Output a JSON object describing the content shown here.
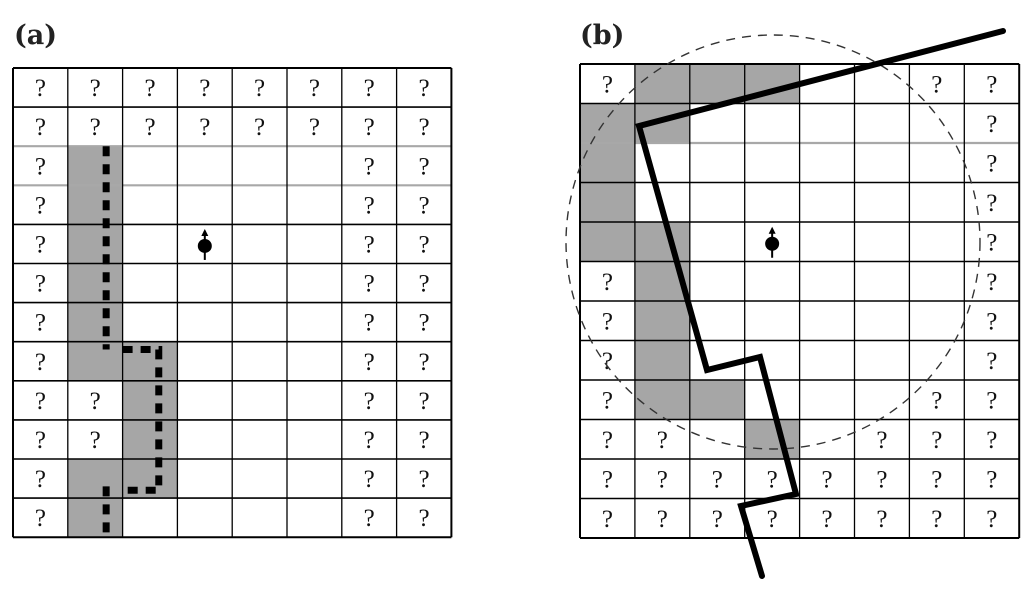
{
  "panels": [
    {
      "id": "a",
      "label": "(a)",
      "rows": 12,
      "cols": 8,
      "unknown_symbol": "?",
      "unknown_cells": [
        [
          0,
          0
        ],
        [
          0,
          1
        ],
        [
          0,
          2
        ],
        [
          0,
          3
        ],
        [
          0,
          4
        ],
        [
          0,
          5
        ],
        [
          0,
          6
        ],
        [
          0,
          7
        ],
        [
          1,
          0
        ],
        [
          1,
          1
        ],
        [
          1,
          2
        ],
        [
          1,
          3
        ],
        [
          1,
          4
        ],
        [
          1,
          5
        ],
        [
          1,
          6
        ],
        [
          1,
          7
        ],
        [
          2,
          0
        ],
        [
          2,
          6
        ],
        [
          2,
          7
        ],
        [
          3,
          0
        ],
        [
          3,
          6
        ],
        [
          3,
          7
        ],
        [
          4,
          0
        ],
        [
          4,
          6
        ],
        [
          4,
          7
        ],
        [
          5,
          0
        ],
        [
          5,
          6
        ],
        [
          5,
          7
        ],
        [
          6,
          0
        ],
        [
          6,
          6
        ],
        [
          6,
          7
        ],
        [
          7,
          0
        ],
        [
          7,
          6
        ],
        [
          7,
          7
        ],
        [
          8,
          0
        ],
        [
          8,
          1
        ],
        [
          8,
          6
        ],
        [
          8,
          7
        ],
        [
          9,
          0
        ],
        [
          9,
          1
        ],
        [
          9,
          6
        ],
        [
          9,
          7
        ],
        [
          10,
          0
        ],
        [
          10,
          6
        ],
        [
          10,
          7
        ],
        [
          11,
          0
        ],
        [
          11,
          6
        ],
        [
          11,
          7
        ]
      ],
      "occupied_cells": [
        [
          2,
          1
        ],
        [
          3,
          1
        ],
        [
          4,
          1
        ],
        [
          5,
          1
        ],
        [
          6,
          1
        ],
        [
          7,
          1
        ],
        [
          7,
          2
        ],
        [
          8,
          2
        ],
        [
          9,
          2
        ],
        [
          10,
          1
        ],
        [
          10,
          2
        ],
        [
          11,
          1
        ]
      ],
      "robot_cell": [
        4,
        3
      ],
      "highlight_rows": [
        2,
        3
      ]
    },
    {
      "id": "b",
      "label": "(b)",
      "rows": 12,
      "cols": 8,
      "unknown_symbol": "?",
      "unknown_cells": [
        [
          0,
          0
        ],
        [
          0,
          6
        ],
        [
          0,
          7
        ],
        [
          1,
          7
        ],
        [
          2,
          7
        ],
        [
          3,
          7
        ],
        [
          4,
          7
        ],
        [
          5,
          7
        ],
        [
          6,
          7
        ],
        [
          7,
          7
        ],
        [
          5,
          0
        ],
        [
          6,
          0
        ],
        [
          7,
          0
        ],
        [
          8,
          0
        ],
        [
          8,
          6
        ],
        [
          8,
          7
        ],
        [
          9,
          0
        ],
        [
          9,
          1
        ],
        [
          9,
          5
        ],
        [
          9,
          6
        ],
        [
          9,
          7
        ],
        [
          10,
          0
        ],
        [
          10,
          1
        ],
        [
          10,
          2
        ],
        [
          10,
          3
        ],
        [
          10,
          4
        ],
        [
          10,
          5
        ],
        [
          10,
          6
        ],
        [
          10,
          7
        ],
        [
          11,
          0
        ],
        [
          11,
          1
        ],
        [
          11,
          2
        ],
        [
          11,
          3
        ],
        [
          11,
          4
        ],
        [
          11,
          5
        ],
        [
          11,
          6
        ],
        [
          11,
          7
        ]
      ],
      "occupied_cells": [
        [
          0,
          1
        ],
        [
          0,
          2
        ],
        [
          0,
          3
        ],
        [
          1,
          0
        ],
        [
          1,
          1
        ],
        [
          2,
          0
        ],
        [
          3,
          0
        ],
        [
          4,
          0
        ],
        [
          4,
          1
        ],
        [
          5,
          1
        ],
        [
          6,
          1
        ],
        [
          7,
          1
        ],
        [
          8,
          1
        ],
        [
          8,
          2
        ],
        [
          9,
          3
        ]
      ],
      "robot_cell": [
        4,
        3
      ],
      "highlight_rows": [
        2
      ]
    }
  ],
  "colors": {
    "occupied_fill": "#a6a6a6",
    "grid_line": "#000000",
    "highlight_line": "#a8a8a8",
    "background": "#ffffff"
  }
}
